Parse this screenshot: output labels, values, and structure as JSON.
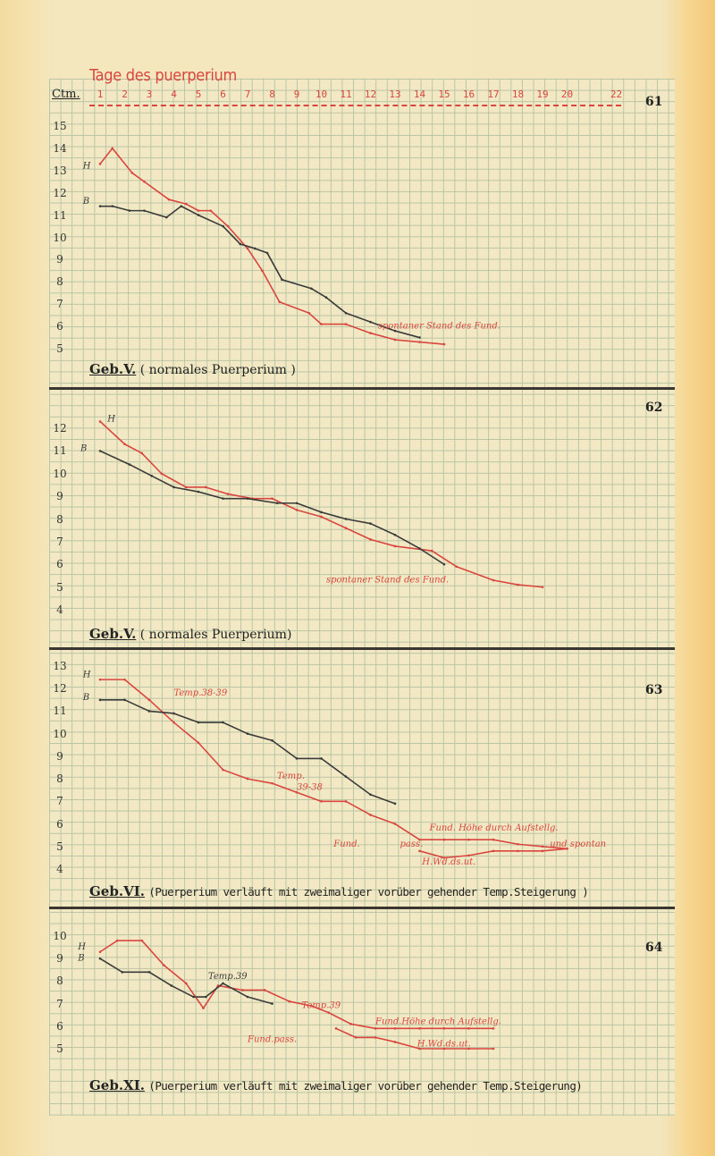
{
  "page": {
    "title": "Tage des puerperium",
    "y_unit_label": "Ctm.",
    "day_ticks": [
      "1",
      "2",
      "3",
      "4",
      "5",
      "6",
      "7",
      "8",
      "9",
      "10",
      "11",
      "12",
      "13",
      "14",
      "15",
      "16",
      "17",
      "18",
      "19",
      "20",
      "",
      "22"
    ],
    "colors": {
      "H": "#d9463f",
      "B": "#3a3a3a",
      "paper": "#f2e9c4",
      "grid": "#b9c4a4"
    }
  },
  "panels": [
    {
      "number": "61",
      "geb": "Geb.V.",
      "desc": "( normales Puerperium )"
    },
    {
      "number": "62",
      "geb": "Geb.V.",
      "desc": "( normales Puerperium)"
    },
    {
      "number": "63",
      "geb": "Geb.VI.",
      "desc": "(Puerperium verläuft mit zweimaliger vorüber gehender Temp.Steigerung )"
    },
    {
      "number": "64",
      "geb": "Geb.XI.",
      "desc": "(Puerperium verläuft mit zweimaliger vorüber gehender Temp.Steigerung)"
    }
  ],
  "chart_data": [
    {
      "type": "line",
      "panel": "61",
      "title": "Geb.V. ( normales Puerperium )",
      "xlabel": "Tage des puerperium",
      "ylabel": "Ctm.",
      "ylim": [
        5,
        15
      ],
      "yticks": [
        15,
        14,
        13,
        12,
        11,
        10,
        9,
        8,
        7,
        6,
        5
      ],
      "grid": true,
      "series": [
        {
          "name": "H",
          "color": "#d9463f",
          "x": [
            1,
            1.5,
            2.3,
            2.8,
            3.8,
            4.5,
            5,
            5.5,
            6.2,
            7,
            7.6,
            8.3,
            9.5,
            10,
            11,
            12,
            13,
            14,
            15
          ],
          "y": [
            13.3,
            14,
            12.9,
            12.5,
            11.7,
            11.5,
            11.2,
            11.2,
            10.5,
            9.5,
            8.5,
            7.1,
            6.6,
            6.1,
            6.1,
            5.7,
            5.4,
            5.3,
            5.2
          ]
        },
        {
          "name": "B",
          "color": "#3a3a3a",
          "x": [
            1,
            1.5,
            2.2,
            2.8,
            3.7,
            4.3,
            5,
            6,
            6.7,
            7.3,
            7.8,
            8.4,
            9.6,
            10.2,
            11,
            12,
            13,
            14
          ],
          "y": [
            11.4,
            11.4,
            11.2,
            11.2,
            10.9,
            11.4,
            11.0,
            10.5,
            9.7,
            9.5,
            9.3,
            8.1,
            7.7,
            7.3,
            6.6,
            6.2,
            5.8,
            5.5
          ]
        }
      ],
      "annotations": [
        {
          "text": "H",
          "x": 0.3,
          "y": 13.1,
          "color": "#3a3a3a"
        },
        {
          "text": "B",
          "x": 0.3,
          "y": 11.5,
          "color": "#3a3a3a"
        },
        {
          "text": "spontaner Stand des Fund.",
          "x": 12.3,
          "y": 5.9,
          "color": "#d9463f"
        }
      ]
    },
    {
      "type": "line",
      "panel": "62",
      "title": "Geb.V. ( normales Puerperium)",
      "xlabel": "Tage des puerperium",
      "ylabel": "Ctm.",
      "ylim": [
        4,
        12
      ],
      "yticks": [
        12,
        11,
        10,
        9,
        8,
        7,
        6,
        5,
        4
      ],
      "grid": true,
      "series": [
        {
          "name": "H",
          "color": "#d9463f",
          "x": [
            1,
            2,
            2.7,
            3.5,
            4.5,
            5.3,
            6.2,
            7.2,
            8,
            9,
            10,
            11,
            12,
            13,
            14.5,
            15.5,
            17,
            18,
            19
          ],
          "y": [
            12.3,
            11.3,
            10.9,
            10,
            9.4,
            9.4,
            9.1,
            8.9,
            8.9,
            8.4,
            8.1,
            7.6,
            7.1,
            6.8,
            6.6,
            5.9,
            5.3,
            5.1,
            5.0
          ]
        },
        {
          "name": "B",
          "color": "#3a3a3a",
          "x": [
            1,
            2.2,
            3.1,
            4,
            5,
            6,
            7,
            8.2,
            9,
            10,
            11,
            12,
            13,
            14,
            15
          ],
          "y": [
            11,
            10.4,
            9.9,
            9.4,
            9.2,
            8.9,
            8.9,
            8.7,
            8.7,
            8.3,
            8.0,
            7.8,
            7.3,
            6.7,
            6.0
          ]
        }
      ],
      "annotations": [
        {
          "text": "H",
          "x": 1.3,
          "y": 12.3,
          "color": "#3a3a3a"
        },
        {
          "text": "B",
          "x": 0.2,
          "y": 11.0,
          "color": "#3a3a3a"
        },
        {
          "text": "spontaner Stand des Fund.",
          "x": 10.2,
          "y": 5.2,
          "color": "#d9463f"
        }
      ]
    },
    {
      "type": "line",
      "panel": "63",
      "title": "Geb.VI. (Puerperium verläuft mit zweimaliger vorüber gehender Temp.Steigerung )",
      "xlabel": "Tage des puerperium",
      "ylabel": "Ctm.",
      "ylim": [
        4,
        13
      ],
      "yticks": [
        13,
        12,
        11,
        10,
        9,
        8,
        7,
        6,
        5,
        4
      ],
      "grid": true,
      "series": [
        {
          "name": "H",
          "color": "#d9463f",
          "x": [
            1,
            2,
            3,
            4,
            5,
            6,
            7,
            8,
            9,
            10,
            11,
            12,
            13,
            14,
            15,
            16,
            17,
            18,
            19,
            20
          ],
          "y": [
            12.4,
            12.4,
            11.5,
            10.5,
            9.6,
            8.4,
            8.0,
            7.8,
            7.4,
            7.0,
            7.0,
            6.4,
            6.0,
            5.3,
            5.3,
            5.3,
            5.3,
            5.1,
            5.0,
            4.9
          ]
        },
        {
          "name": "B",
          "color": "#3a3a3a",
          "x": [
            1,
            2,
            3,
            4,
            5,
            6,
            7,
            8,
            9,
            10,
            11,
            12,
            13
          ],
          "y": [
            11.5,
            11.5,
            11.0,
            10.9,
            10.5,
            10.5,
            10.0,
            9.7,
            8.9,
            8.9,
            8.1,
            7.3,
            6.9
          ]
        },
        {
          "name": "H (Fund. pass.)",
          "color": "#d9463f",
          "x": [
            14,
            15,
            16,
            17,
            18,
            19,
            20
          ],
          "y": [
            4.8,
            4.5,
            4.6,
            4.8,
            4.8,
            4.8,
            4.9
          ]
        }
      ],
      "annotations": [
        {
          "text": "H",
          "x": 0.3,
          "y": 12.5,
          "color": "#3a3a3a"
        },
        {
          "text": "B",
          "x": 0.3,
          "y": 11.5,
          "color": "#3a3a3a"
        },
        {
          "text": "Temp.38-39",
          "x": 4,
          "y": 11.7,
          "color": "#d9463f"
        },
        {
          "text": "Temp.",
          "x": 8.2,
          "y": 8.0,
          "color": "#d9463f"
        },
        {
          "text": "39-38",
          "x": 9,
          "y": 7.5,
          "color": "#d9463f"
        },
        {
          "text": "Fund. Höhe durch Aufstellg.",
          "x": 14.4,
          "y": 5.7,
          "color": "#d9463f"
        },
        {
          "text": "Fund.",
          "x": 10.5,
          "y": 5.0,
          "color": "#d9463f"
        },
        {
          "text": "pass.",
          "x": 13.2,
          "y": 5.0,
          "color": "#d9463f"
        },
        {
          "text": "und spontan",
          "x": 19.3,
          "y": 5.0,
          "color": "#d9463f"
        },
        {
          "text": "H.Wd.ds.ut.",
          "x": 14.1,
          "y": 4.2,
          "color": "#d9463f"
        }
      ]
    },
    {
      "type": "line",
      "panel": "64",
      "title": "Geb.XI. (Puerperium verläuft mit zweimaliger vorüber gehender Temp.Steigerung)",
      "xlabel": "Tage des puerperium",
      "ylabel": "Ctm.",
      "ylim": [
        5,
        10
      ],
      "yticks": [
        10,
        9,
        8,
        7,
        6,
        5
      ],
      "grid": true,
      "series": [
        {
          "name": "H",
          "color": "#d9463f",
          "x": [
            1,
            1.7,
            2.7,
            3.6,
            4.5,
            5.2,
            5.8,
            6.8,
            7.7,
            8.7,
            9.6,
            10.3,
            11.2,
            12.2,
            13,
            14,
            15,
            16,
            17
          ],
          "y": [
            9.3,
            9.8,
            9.8,
            8.7,
            7.9,
            6.8,
            7.8,
            7.6,
            7.6,
            7.1,
            6.9,
            6.6,
            6.1,
            5.9,
            5.9,
            5.9,
            5.9,
            5.9,
            5.9
          ]
        },
        {
          "name": "B",
          "color": "#3a3a3a",
          "x": [
            1,
            1.9,
            3.0,
            3.9,
            4.8,
            5.3,
            6,
            7,
            8
          ],
          "y": [
            9,
            8.4,
            8.4,
            7.8,
            7.3,
            7.3,
            7.9,
            7.3,
            7.0
          ]
        },
        {
          "name": "H (Fund. pass.)",
          "color": "#d9463f",
          "x": [
            10.6,
            11.4,
            12.2,
            13,
            14,
            15,
            16,
            17
          ],
          "y": [
            5.9,
            5.5,
            5.5,
            5.3,
            5.0,
            5.0,
            5.0,
            5.0
          ]
        }
      ],
      "annotations": [
        {
          "text": "H",
          "x": 0.1,
          "y": 9.4,
          "color": "#3a3a3a"
        },
        {
          "text": "B",
          "x": 0.1,
          "y": 8.9,
          "color": "#3a3a3a"
        },
        {
          "text": "Temp.39",
          "x": 5.4,
          "y": 8.1,
          "color": "#3a3a3a"
        },
        {
          "text": "Temp.39",
          "x": 9.2,
          "y": 6.8,
          "color": "#d9463f"
        },
        {
          "text": "Fund.Höhe durch Aufstellg.",
          "x": 12.2,
          "y": 6.1,
          "color": "#d9463f"
        },
        {
          "text": "Fund.pass.",
          "x": 7,
          "y": 5.3,
          "color": "#d9463f"
        },
        {
          "text": "H.Wd.ds.ut.",
          "x": 13.9,
          "y": 5.1,
          "color": "#d9463f"
        }
      ]
    }
  ]
}
